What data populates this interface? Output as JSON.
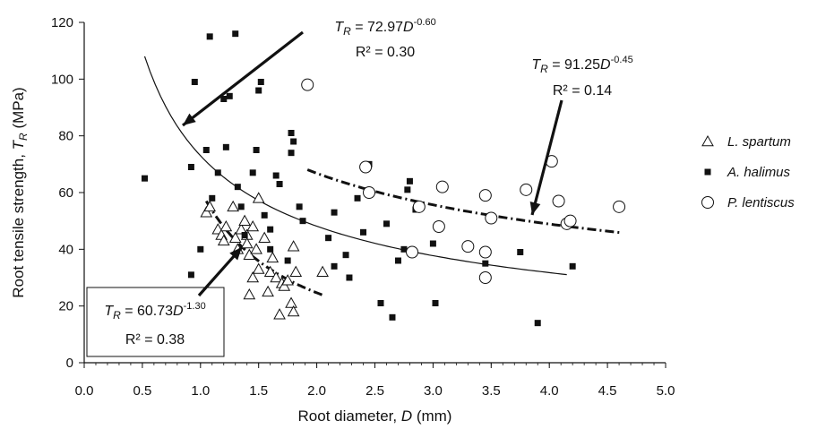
{
  "chart_data": {
    "type": "scatter",
    "xlabel": "Root diameter, D (mm)",
    "ylabel": "Root tensile strength, TR (MPa)",
    "xlim": [
      0,
      5
    ],
    "ylim": [
      0,
      120
    ],
    "x_ticks": [
      "0.0",
      "0.5",
      "1.0",
      "1.5",
      "2.0",
      "2.5",
      "3.0",
      "3.5",
      "4.0",
      "4.5",
      "5.0"
    ],
    "y_ticks": [
      "0",
      "20",
      "40",
      "60",
      "80",
      "100",
      "120"
    ],
    "legend_position": "right",
    "series": [
      {
        "name": "L. spartum",
        "marker": "triangle-open",
        "points": [
          [
            1.05,
            53
          ],
          [
            1.08,
            55
          ],
          [
            1.15,
            47
          ],
          [
            1.18,
            45
          ],
          [
            1.2,
            43
          ],
          [
            1.22,
            48
          ],
          [
            1.28,
            55
          ],
          [
            1.3,
            44
          ],
          [
            1.32,
            40
          ],
          [
            1.35,
            47
          ],
          [
            1.38,
            50
          ],
          [
            1.4,
            45
          ],
          [
            1.4,
            42
          ],
          [
            1.42,
            24
          ],
          [
            1.42,
            38
          ],
          [
            1.45,
            30
          ],
          [
            1.45,
            48
          ],
          [
            1.48,
            40
          ],
          [
            1.5,
            33
          ],
          [
            1.5,
            58
          ],
          [
            1.55,
            44
          ],
          [
            1.58,
            25
          ],
          [
            1.6,
            32
          ],
          [
            1.62,
            37
          ],
          [
            1.65,
            30
          ],
          [
            1.68,
            17
          ],
          [
            1.7,
            28
          ],
          [
            1.72,
            27
          ],
          [
            1.75,
            29
          ],
          [
            1.78,
            21
          ],
          [
            1.8,
            18
          ],
          [
            1.8,
            41
          ],
          [
            1.82,
            32
          ],
          [
            2.05,
            32
          ]
        ]
      },
      {
        "name": "A. halimus",
        "marker": "square-filled",
        "points": [
          [
            0.52,
            65
          ],
          [
            0.92,
            31
          ],
          [
            0.92,
            69
          ],
          [
            0.95,
            99
          ],
          [
            1.0,
            40
          ],
          [
            1.05,
            75
          ],
          [
            1.08,
            115
          ],
          [
            1.1,
            58
          ],
          [
            1.15,
            67
          ],
          [
            1.2,
            93
          ],
          [
            1.22,
            76
          ],
          [
            1.25,
            94
          ],
          [
            1.3,
            116
          ],
          [
            1.32,
            62
          ],
          [
            1.35,
            55
          ],
          [
            1.38,
            45
          ],
          [
            1.45,
            67
          ],
          [
            1.48,
            75
          ],
          [
            1.5,
            96
          ],
          [
            1.52,
            99
          ],
          [
            1.55,
            52
          ],
          [
            1.6,
            47
          ],
          [
            1.6,
            40
          ],
          [
            1.65,
            66
          ],
          [
            1.68,
            63
          ],
          [
            1.75,
            36
          ],
          [
            1.78,
            74
          ],
          [
            1.78,
            81
          ],
          [
            1.8,
            78
          ],
          [
            1.85,
            55
          ],
          [
            1.88,
            50
          ],
          [
            2.1,
            44
          ],
          [
            2.15,
            34
          ],
          [
            2.15,
            53
          ],
          [
            2.25,
            38
          ],
          [
            2.28,
            30
          ],
          [
            2.35,
            58
          ],
          [
            2.4,
            46
          ],
          [
            2.45,
            70
          ],
          [
            2.55,
            21
          ],
          [
            2.6,
            49
          ],
          [
            2.65,
            16
          ],
          [
            2.7,
            36
          ],
          [
            2.75,
            40
          ],
          [
            2.78,
            61
          ],
          [
            2.8,
            64
          ],
          [
            2.85,
            54
          ],
          [
            3.0,
            42
          ],
          [
            3.02,
            21
          ],
          [
            3.45,
            35
          ],
          [
            3.75,
            39
          ],
          [
            3.9,
            14
          ],
          [
            4.2,
            34
          ]
        ]
      },
      {
        "name": "P. lentiscus",
        "marker": "circle-open",
        "points": [
          [
            1.92,
            98
          ],
          [
            2.42,
            69
          ],
          [
            2.45,
            60
          ],
          [
            2.82,
            39
          ],
          [
            2.88,
            55
          ],
          [
            3.05,
            48
          ],
          [
            3.08,
            62
          ],
          [
            3.3,
            41
          ],
          [
            3.45,
            30
          ],
          [
            3.45,
            39
          ],
          [
            3.45,
            59
          ],
          [
            3.5,
            51
          ],
          [
            3.8,
            61
          ],
          [
            4.02,
            71
          ],
          [
            4.08,
            57
          ],
          [
            4.15,
            49
          ],
          [
            4.18,
            50
          ],
          [
            4.6,
            55
          ]
        ]
      }
    ],
    "fits": [
      {
        "label_prefix": "T",
        "label_sub": "R",
        "label_mid": " = 72.97",
        "label_var": "D",
        "label_exp": "-0.60",
        "r2": "R² = 0.30",
        "a": 72.97,
        "b": -0.6,
        "x_range": [
          0.52,
          4.15
        ],
        "style": "solid"
      },
      {
        "label_prefix": "T",
        "label_sub": "R",
        "label_mid": " = 91.25",
        "label_var": "D",
        "label_exp": "-0.45",
        "r2": "R² = 0.14",
        "a": 91.25,
        "b": -0.45,
        "x_range": [
          1.92,
          4.62
        ],
        "style": "dashdot"
      },
      {
        "label_prefix": "T",
        "label_sub": "R",
        "label_mid": " = 60.73",
        "label_var": "D",
        "label_exp": "-1.30",
        "r2": "R² = 0.38",
        "a": 60.73,
        "b": -1.3,
        "x_range": [
          1.05,
          2.05
        ],
        "style": "dashdot"
      }
    ],
    "colors": {
      "ink": "#111111",
      "background": "#ffffff"
    }
  }
}
